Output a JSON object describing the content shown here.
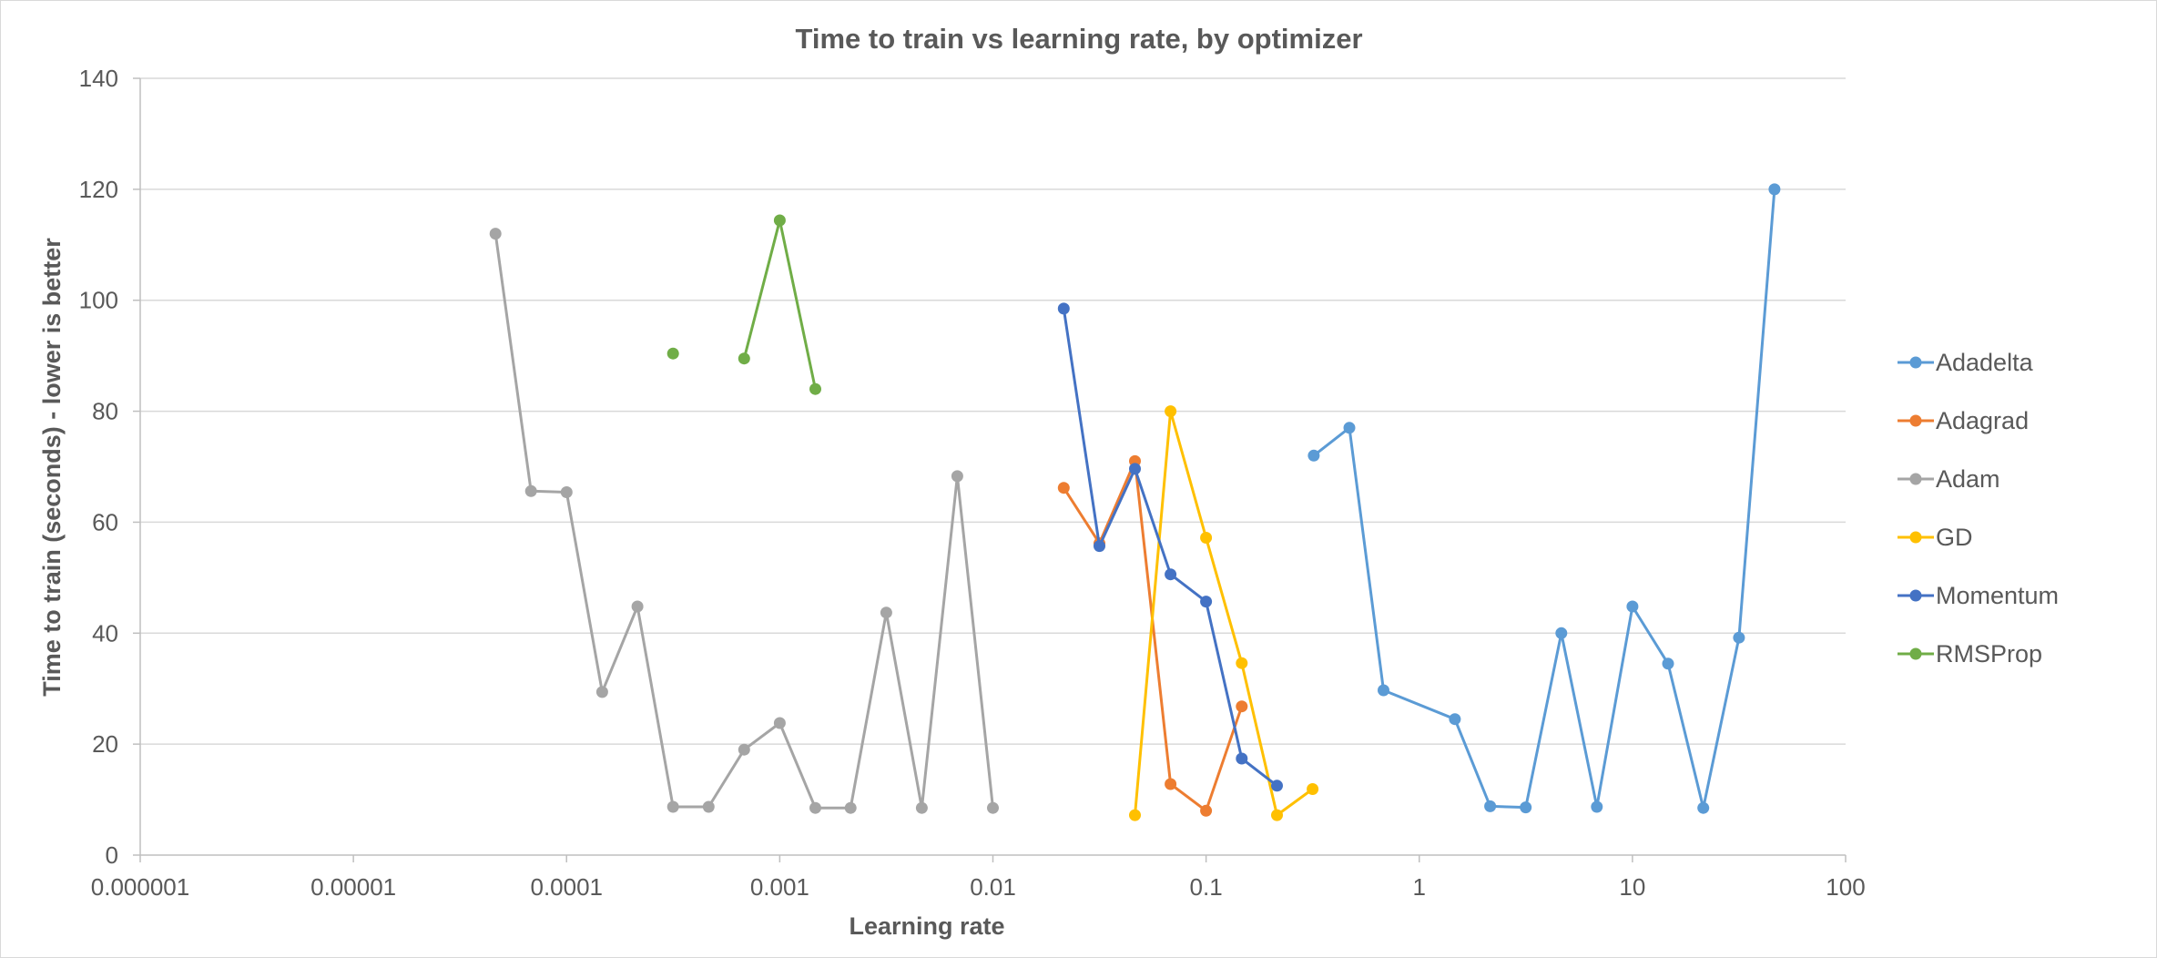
{
  "chart_data": {
    "type": "line",
    "title": "Time to train vs learning rate, by optimizer",
    "xlabel": "Learning rate",
    "ylabel": "Time to train (seconds) - lower is better",
    "xscale": "log",
    "xlim": [
      1e-06,
      100
    ],
    "ylim": [
      0,
      140
    ],
    "x_ticks": [
      1e-06,
      1e-05,
      0.0001,
      0.001,
      0.01,
      0.1,
      1,
      10,
      100
    ],
    "x_tick_labels": [
      "0.000001",
      "0.00001",
      "0.0001",
      "0.001",
      "0.01",
      "0.1",
      "1",
      "10",
      "100"
    ],
    "y_ticks": [
      0,
      20,
      40,
      60,
      80,
      100,
      120,
      140
    ],
    "y_tick_labels": [
      "0",
      "20",
      "40",
      "60",
      "80",
      "100",
      "120",
      "140"
    ],
    "grid": "horizontal",
    "legend_position": "right",
    "series": [
      {
        "name": "Adadelta",
        "color": "#5b9bd5",
        "segments": [
          [
            [
              0.32,
              72
            ],
            [
              0.47,
              77
            ],
            [
              0.68,
              29.7
            ],
            [
              1.47,
              24.5
            ],
            [
              2.15,
              8.8
            ],
            [
              3.16,
              8.6
            ],
            [
              4.64,
              40
            ],
            [
              6.81,
              8.7
            ],
            [
              10,
              44.8
            ],
            [
              14.7,
              34.5
            ],
            [
              21.5,
              8.5
            ],
            [
              31.6,
              39.2
            ],
            [
              46.4,
              120
            ]
          ]
        ]
      },
      {
        "name": "Adagrad",
        "color": "#ed7d31",
        "segments": [
          [
            [
              0.0215,
              66.2
            ],
            [
              0.0316,
              56.2
            ],
            [
              0.0464,
              71
            ],
            [
              0.0681,
              12.8
            ],
            [
              0.1,
              8
            ],
            [
              0.147,
              26.8
            ]
          ]
        ]
      },
      {
        "name": "Adam",
        "color": "#a5a5a5",
        "segments": [
          [
            [
              4.64e-05,
              112
            ],
            [
              6.81e-05,
              65.6
            ],
            [
              0.0001,
              65.4
            ],
            [
              0.000147,
              29.4
            ],
            [
              0.000215,
              44.8
            ],
            [
              0.000316,
              8.7
            ],
            [
              0.000464,
              8.7
            ],
            [
              0.000681,
              19
            ],
            [
              0.001,
              23.8
            ],
            [
              0.00147,
              8.5
            ],
            [
              0.00215,
              8.5
            ],
            [
              0.00316,
              43.7
            ],
            [
              0.00464,
              8.5
            ],
            [
              0.00681,
              68.3
            ],
            [
              0.01,
              8.5
            ]
          ]
        ]
      },
      {
        "name": "GD",
        "color": "#ffc000",
        "segments": [
          [
            [
              0.0464,
              7.2
            ],
            [
              0.0681,
              80
            ],
            [
              0.1,
              57.2
            ],
            [
              0.147,
              34.6
            ],
            [
              0.215,
              7.2
            ],
            [
              0.316,
              11.9
            ]
          ]
        ]
      },
      {
        "name": "Momentum",
        "color": "#4472c4",
        "segments": [
          [
            [
              0.0215,
              98.5
            ],
            [
              0.0316,
              55.7
            ],
            [
              0.0464,
              69.6
            ],
            [
              0.0681,
              50.6
            ],
            [
              0.1,
              45.7
            ],
            [
              0.147,
              17.4
            ],
            [
              0.215,
              12.5
            ]
          ]
        ]
      },
      {
        "name": "RMSProp",
        "color": "#70ad47",
        "segments": [
          [
            [
              0.000316,
              90.4
            ]
          ],
          [
            [
              0.000681,
              89.5
            ],
            [
              0.001,
              114.4
            ],
            [
              0.00147,
              84
            ]
          ]
        ]
      }
    ]
  }
}
